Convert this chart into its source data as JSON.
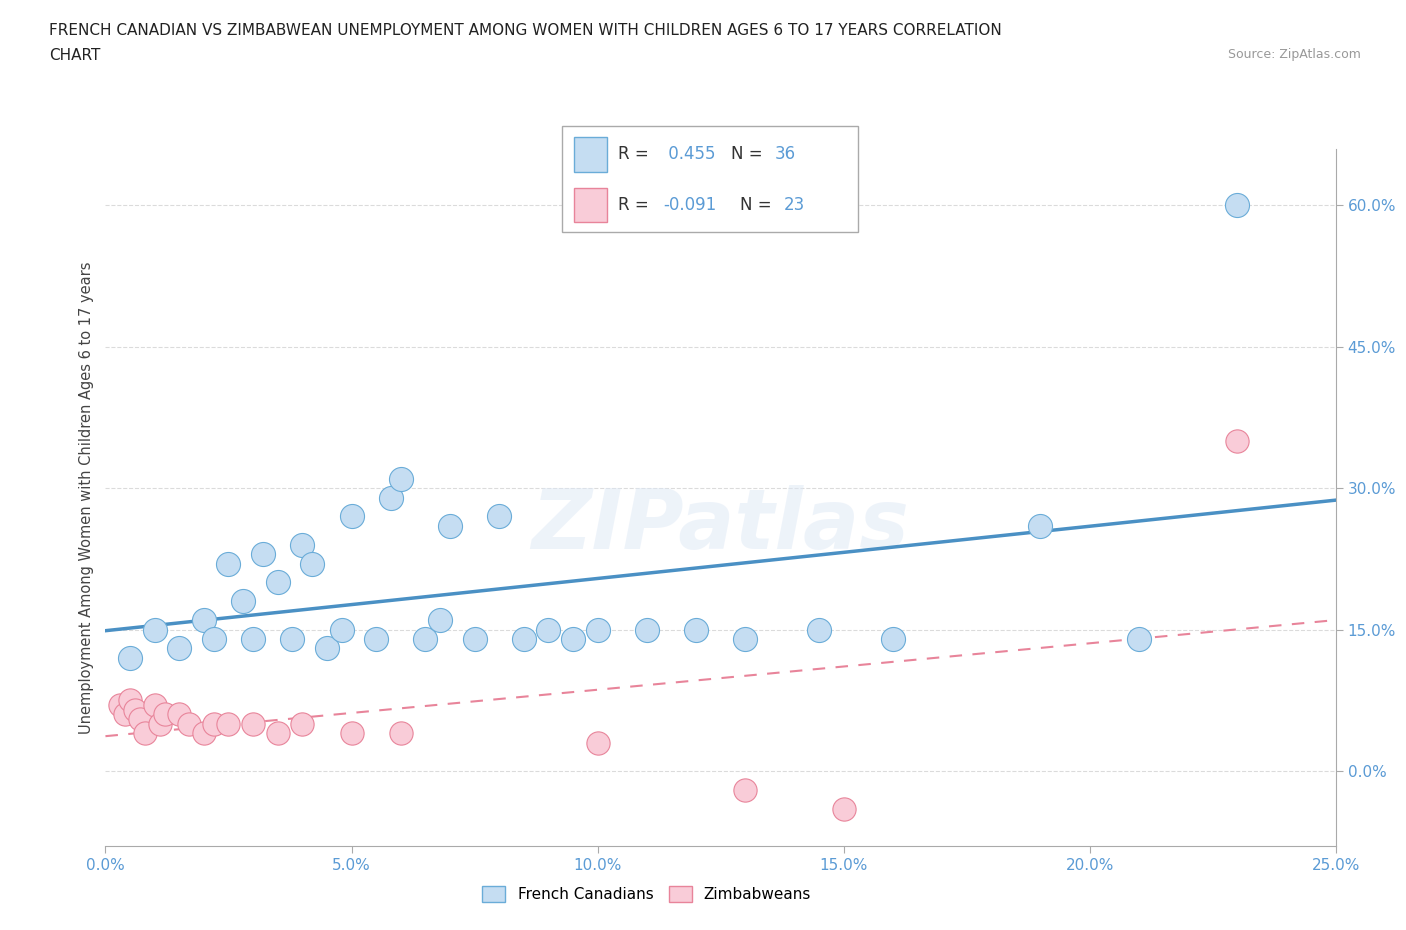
{
  "title_line1": "FRENCH CANADIAN VS ZIMBABWEAN UNEMPLOYMENT AMONG WOMEN WITH CHILDREN AGES 6 TO 17 YEARS CORRELATION",
  "title_line2": "CHART",
  "source": "Source: ZipAtlas.com",
  "ylabel": "Unemployment Among Women with Children Ages 6 to 17 years",
  "xmin": 0.0,
  "xmax": 0.25,
  "ymin": -0.08,
  "ymax": 0.66,
  "r_french": 0.455,
  "n_french": 36,
  "r_zimbabwe": -0.091,
  "n_zimbabwe": 23,
  "french_color": "#c5ddf2",
  "french_edge_color": "#6aacd8",
  "french_line_color": "#4a90c4",
  "zimbabwe_color": "#f9ccd8",
  "zimbabwe_edge_color": "#e8849a",
  "zimbabwe_line_color": "#e8849a",
  "tick_color": "#5b9bd5",
  "grid_color": "#cccccc",
  "french_x": [
    0.005,
    0.01,
    0.015,
    0.02,
    0.022,
    0.025,
    0.028,
    0.03,
    0.032,
    0.035,
    0.038,
    0.04,
    0.042,
    0.045,
    0.048,
    0.05,
    0.055,
    0.058,
    0.06,
    0.065,
    0.068,
    0.07,
    0.075,
    0.08,
    0.085,
    0.09,
    0.095,
    0.1,
    0.11,
    0.12,
    0.13,
    0.145,
    0.16,
    0.19,
    0.21,
    0.23
  ],
  "french_y": [
    0.12,
    0.15,
    0.13,
    0.16,
    0.14,
    0.22,
    0.18,
    0.14,
    0.23,
    0.2,
    0.14,
    0.24,
    0.22,
    0.13,
    0.15,
    0.27,
    0.14,
    0.29,
    0.31,
    0.14,
    0.16,
    0.26,
    0.14,
    0.27,
    0.14,
    0.15,
    0.14,
    0.15,
    0.15,
    0.15,
    0.14,
    0.15,
    0.14,
    0.26,
    0.14,
    0.6
  ],
  "zimbabwe_x": [
    0.003,
    0.004,
    0.005,
    0.006,
    0.007,
    0.008,
    0.01,
    0.011,
    0.012,
    0.015,
    0.017,
    0.02,
    0.022,
    0.025,
    0.03,
    0.035,
    0.04,
    0.05,
    0.06,
    0.1,
    0.13,
    0.15,
    0.23
  ],
  "zimbabwe_y": [
    0.07,
    0.06,
    0.075,
    0.065,
    0.055,
    0.04,
    0.07,
    0.05,
    0.06,
    0.06,
    0.05,
    0.04,
    0.05,
    0.05,
    0.05,
    0.04,
    0.05,
    0.04,
    0.04,
    0.03,
    -0.02,
    -0.04,
    0.35
  ]
}
